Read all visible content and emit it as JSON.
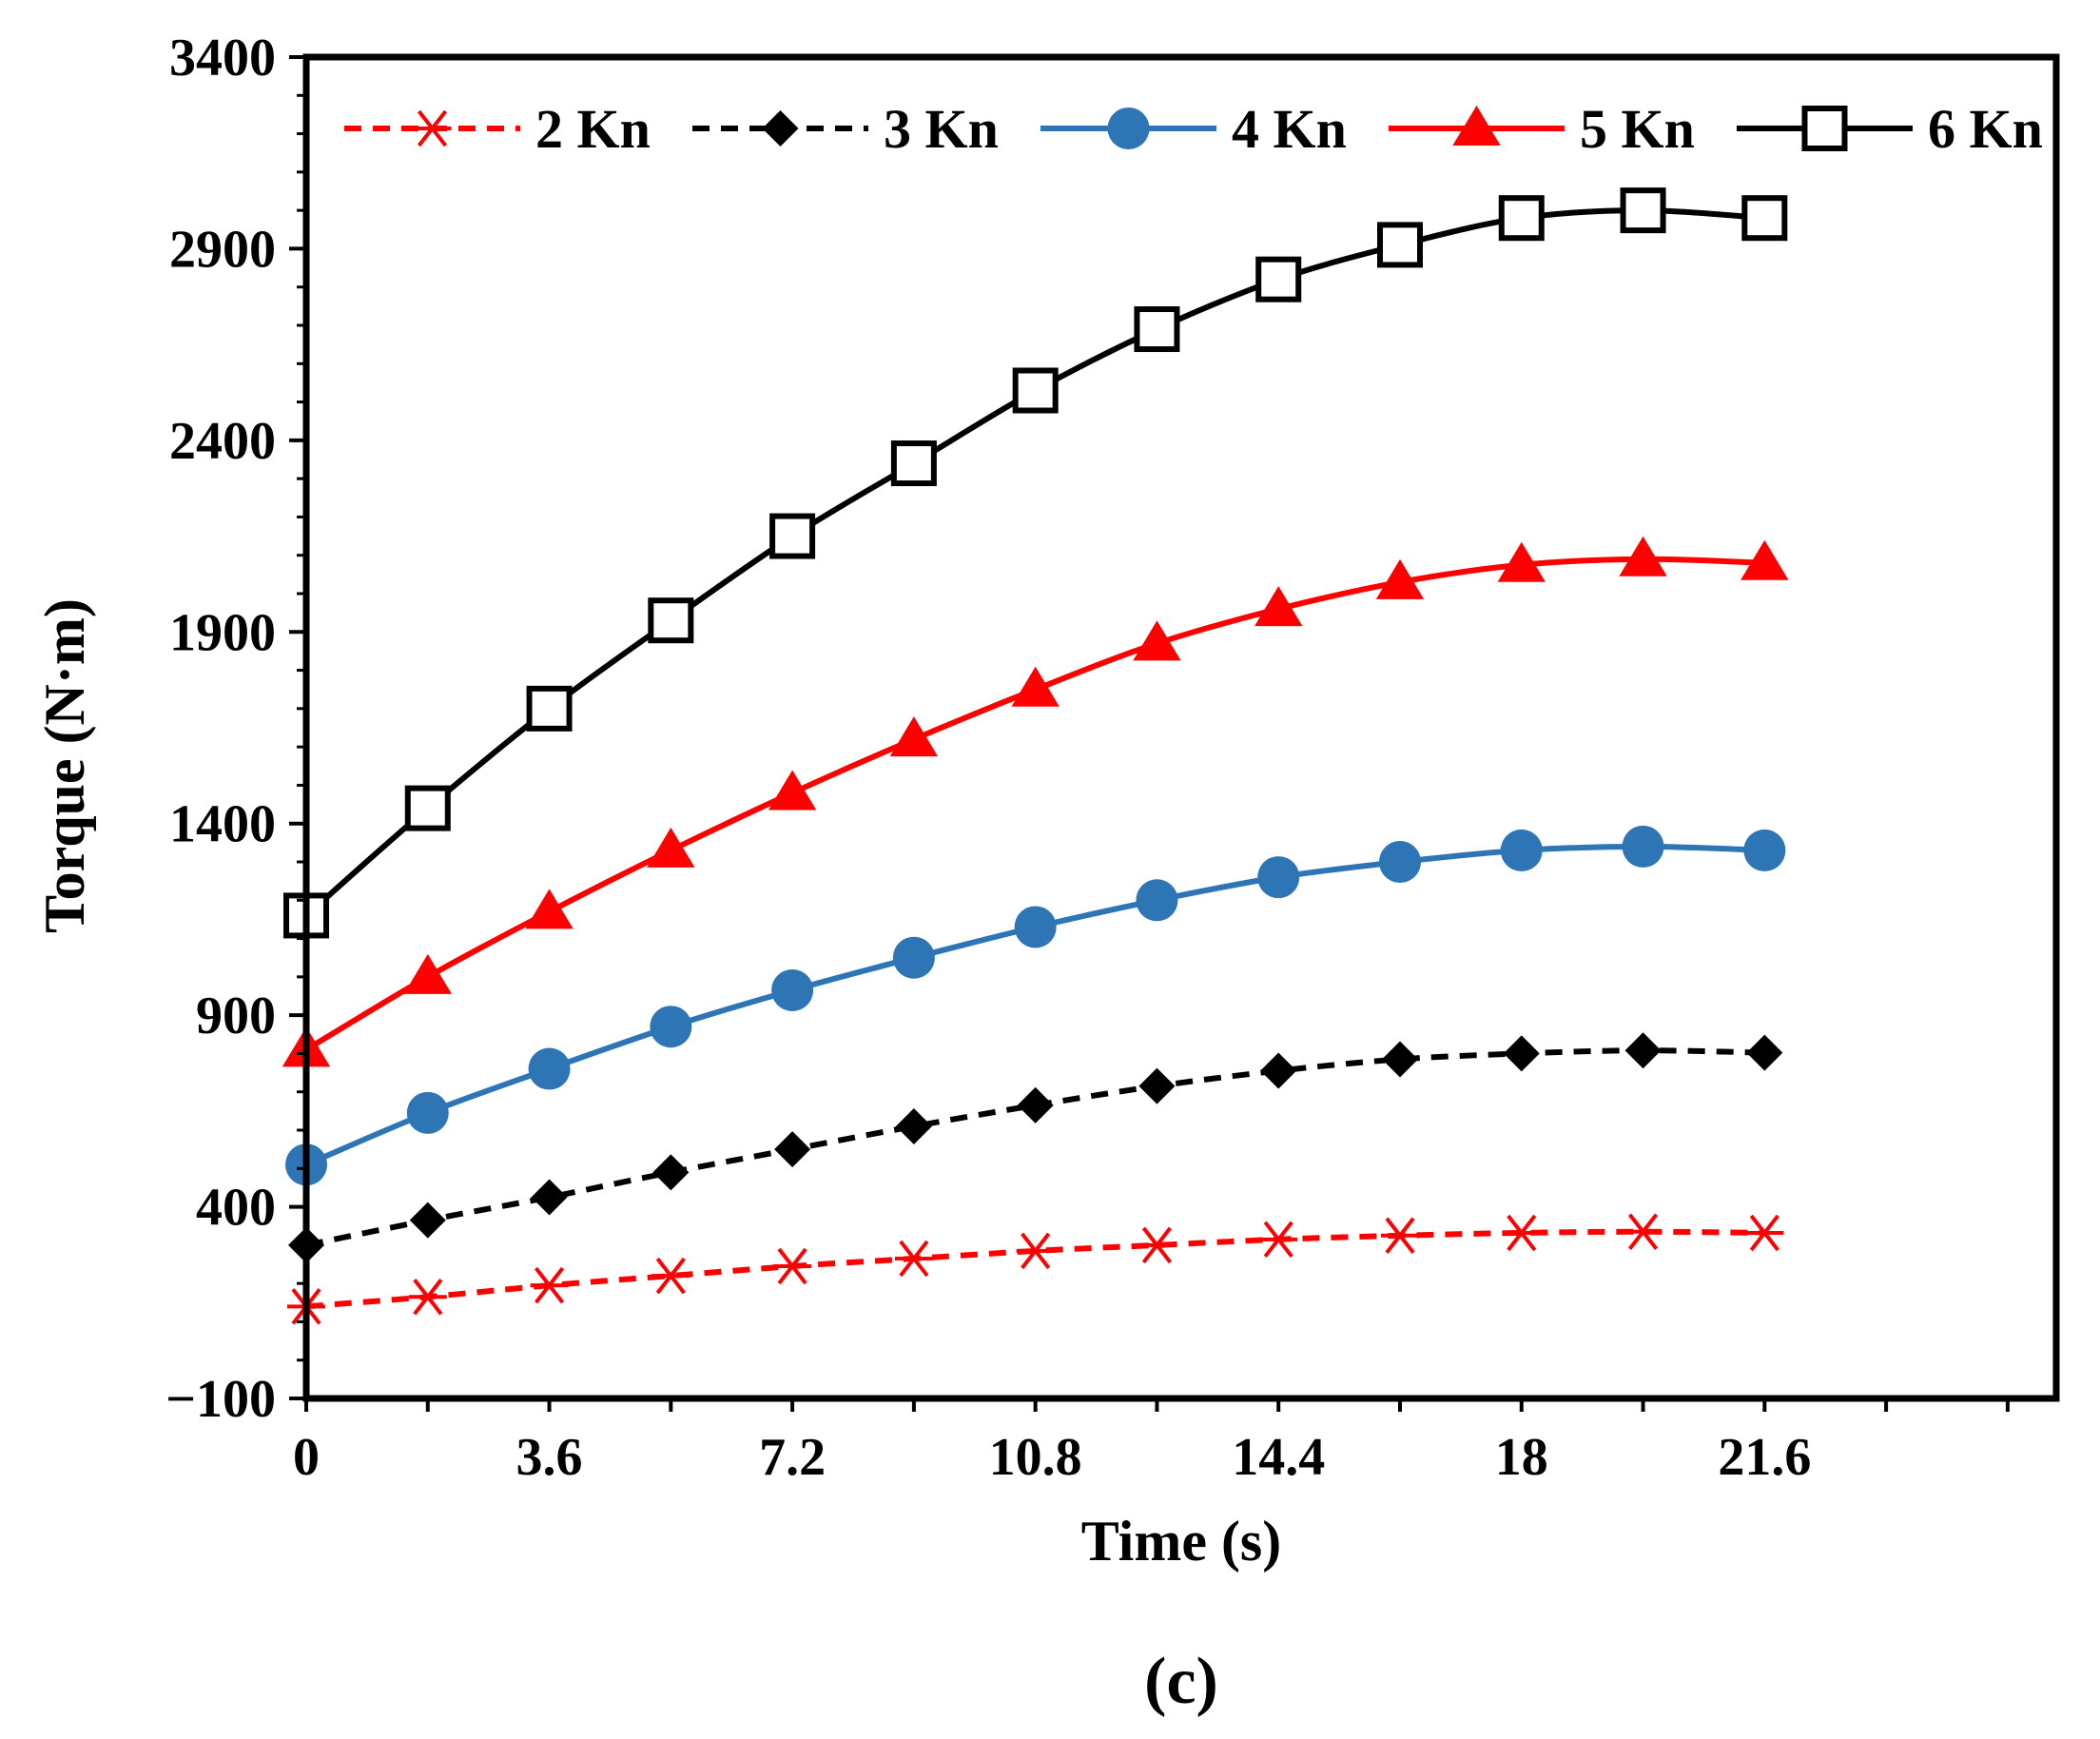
{
  "chart_data": {
    "type": "line",
    "title": "",
    "xlabel": "Time (s)",
    "ylabel": "Torque (N·m)",
    "xlim": [
      0,
      25.92
    ],
    "ylim": [
      -100,
      3400
    ],
    "x_ticks": [
      0,
      3.6,
      7.2,
      10.8,
      14.4,
      18,
      21.6
    ],
    "x_tick_labels": [
      "0",
      "3.6",
      "7.2",
      "10.8",
      "14.4",
      "18",
      "21.6"
    ],
    "y_ticks": [
      -100,
      400,
      900,
      1400,
      1900,
      2400,
      2900,
      3400
    ],
    "y_tick_labels": [
      "−100",
      "400",
      "900",
      "1400",
      "1900",
      "2400",
      "2900",
      "3400"
    ],
    "grid": false,
    "legend_position": "top",
    "caption": "(c)",
    "x": [
      0,
      1.8,
      3.6,
      5.4,
      7.2,
      9.0,
      10.8,
      12.6,
      14.4,
      16.2,
      18.0,
      19.8,
      21.6
    ],
    "series": [
      {
        "name": "2 Kn",
        "color": "#ff0000",
        "line_style": "dashed",
        "marker": "asterisk",
        "values": [
          140,
          165,
          195,
          220,
          245,
          265,
          285,
          300,
          315,
          325,
          332,
          335,
          332
        ]
      },
      {
        "name": "3 Kn",
        "color": "#000000",
        "line_style": "dashed",
        "marker": "diamond",
        "values": [
          300,
          365,
          425,
          490,
          550,
          610,
          665,
          715,
          755,
          785,
          800,
          808,
          802
        ]
      },
      {
        "name": "4 Kn",
        "color": "#2e75b6",
        "line_style": "solid",
        "marker": "circle",
        "values": [
          510,
          645,
          760,
          870,
          965,
          1050,
          1130,
          1200,
          1260,
          1300,
          1330,
          1340,
          1330
        ]
      },
      {
        "name": "5 Kn",
        "color": "#ff0000",
        "line_style": "solid",
        "marker": "triangle",
        "values": [
          810,
          1000,
          1170,
          1330,
          1480,
          1620,
          1750,
          1870,
          1960,
          2030,
          2075,
          2090,
          2080
        ]
      },
      {
        "name": "6 Kn",
        "color": "#000000",
        "line_style": "solid",
        "marker": "open-square",
        "values": [
          1160,
          1440,
          1700,
          1930,
          2150,
          2340,
          2530,
          2690,
          2820,
          2910,
          2980,
          3000,
          2980
        ]
      }
    ]
  }
}
